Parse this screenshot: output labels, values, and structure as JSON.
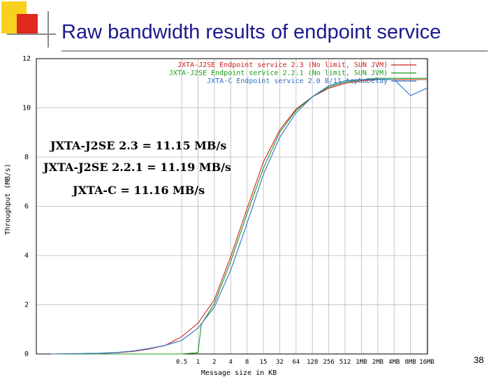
{
  "slide": {
    "title": "Raw bandwidth results of endpoint service",
    "page_number": "38",
    "accent_colors": {
      "yellow": "#f7d21d",
      "red": "#e0281e",
      "rule": "#9a9a9a"
    }
  },
  "chart_data": {
    "type": "line",
    "xlabel": "Message size in KB",
    "ylabel": "Throughput (MB/s)",
    "ylim": [
      0,
      12
    ],
    "y_ticks": [
      "0",
      "2",
      "4",
      "6",
      "8",
      "10",
      "12"
    ],
    "x_ticks": [
      "0.5",
      "1",
      "2",
      "4",
      "8",
      "15",
      "32",
      "64",
      "128",
      "256",
      "512",
      "1MB",
      "2MB",
      "4MB",
      "8MB",
      "16MB"
    ],
    "grid": true,
    "legend_position": "top-right",
    "series": [
      {
        "name": "JXTA-J2SE Endpoint service 2.3 (No limit, SUN JVM)",
        "color": "#cc2020",
        "points": [
          [
            -8,
            0
          ],
          [
            -5,
            0.02
          ],
          [
            -4,
            0.05
          ],
          [
            -3,
            0.1
          ],
          [
            -2,
            0.2
          ],
          [
            -1,
            0.35
          ],
          [
            0,
            0.7
          ],
          [
            1,
            1.25
          ],
          [
            2,
            2.2
          ],
          [
            3,
            3.95
          ],
          [
            4,
            5.9
          ],
          [
            5,
            7.8
          ],
          [
            6,
            9.1
          ],
          [
            7,
            9.95
          ],
          [
            8,
            10.45
          ],
          [
            9,
            10.8
          ],
          [
            10,
            11.0
          ],
          [
            11,
            11.1
          ],
          [
            12,
            11.15
          ],
          [
            13,
            11.15
          ],
          [
            14,
            11.15
          ],
          [
            15,
            11.15
          ]
        ]
      },
      {
        "name": "JXTA-J2SE Endpoint service 2.2.1 (No limit, SUN JVM)",
        "color": "#1a9a1a",
        "points": [
          [
            -8,
            0
          ],
          [
            -3,
            0
          ],
          [
            -2,
            0
          ],
          [
            -1,
            0
          ],
          [
            0,
            0
          ],
          [
            1,
            0.05
          ],
          [
            1.2,
            1.2
          ],
          [
            2,
            2.05
          ],
          [
            3,
            3.75
          ],
          [
            4,
            5.7
          ],
          [
            5,
            7.55
          ],
          [
            6,
            9.0
          ],
          [
            7,
            9.9
          ],
          [
            8,
            10.45
          ],
          [
            9,
            10.85
          ],
          [
            10,
            11.05
          ],
          [
            11,
            11.15
          ],
          [
            12,
            11.2
          ],
          [
            13,
            11.2
          ],
          [
            14,
            11.2
          ],
          [
            15,
            11.2
          ]
        ]
      },
      {
        "name": "JXTA-C Endpoint service 2.0 8/11 tcpNoDelay",
        "color": "#2a70c8",
        "points": [
          [
            -8,
            0
          ],
          [
            -5,
            0.03
          ],
          [
            -4,
            0.06
          ],
          [
            -3,
            0.12
          ],
          [
            -2,
            0.22
          ],
          [
            -1,
            0.35
          ],
          [
            0,
            0.55
          ],
          [
            1,
            1.05
          ],
          [
            2,
            1.9
          ],
          [
            3,
            3.4
          ],
          [
            4,
            5.3
          ],
          [
            5,
            7.3
          ],
          [
            6,
            8.8
          ],
          [
            7,
            9.8
          ],
          [
            8,
            10.45
          ],
          [
            9,
            10.9
          ],
          [
            10,
            11.1
          ],
          [
            11,
            11.15
          ],
          [
            12,
            11.16
          ],
          [
            13,
            11.15
          ],
          [
            14,
            10.5
          ],
          [
            15,
            10.8
          ]
        ]
      }
    ],
    "annotations": [
      "JXTA-J2SE 2.3 = 11.15 MB/s",
      "JXTA-J2SE 2.2.1 = 11.19 MB/s",
      "JXTA-C = 11.16 MB/s"
    ]
  }
}
